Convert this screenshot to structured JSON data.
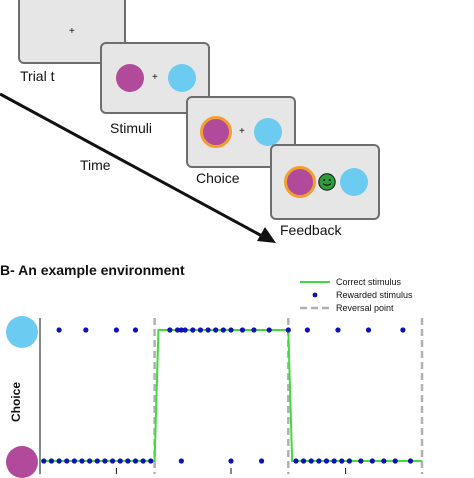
{
  "panel_a": {
    "fixation_symbol": "+",
    "labels": {
      "trial": "Trial t",
      "stimuli": "Stimuli",
      "choice": "Choice",
      "time": "Time",
      "feedback": "Feedback"
    },
    "feedback_icon": "smiley-face-icon"
  },
  "panel_b": {
    "title": "B- An example environment",
    "y_axis_label": "Choice",
    "legend": {
      "correct": "Correct stimulus",
      "rewarded": "Rewarded stimulus",
      "reversal": "Reversal point"
    }
  },
  "colors": {
    "magenta_stimulus": "#b14a9b",
    "cyan_stimulus": "#6ccbf0",
    "choice_ring": "#f0a030",
    "correct_line": "#3ddc3d",
    "rewarded_dot": "#1010b8",
    "reversal_line": "#b0b0b0",
    "feedback_face": "#2e9e3c"
  },
  "chart_data": {
    "type": "scatter",
    "title": "B- An example environment",
    "ylabel": "Choice",
    "y_categories": [
      "magenta",
      "cyan"
    ],
    "reversal_trials": [
      30,
      65
    ],
    "correct_stimulus": [
      {
        "from_trial": 0,
        "to_trial": 30,
        "stimulus": "magenta"
      },
      {
        "from_trial": 31,
        "to_trial": 65,
        "stimulus": "cyan"
      },
      {
        "from_trial": 66,
        "to_trial": 100,
        "stimulus": "magenta"
      }
    ],
    "rewarded_cyan_trials": [
      5,
      12,
      20,
      25,
      34,
      36,
      37,
      38,
      40,
      42,
      44,
      46,
      48,
      50,
      53,
      56,
      60,
      65,
      70,
      78,
      86,
      95
    ],
    "rewarded_magenta_trials": [
      1,
      3,
      5,
      7,
      9,
      11,
      13,
      15,
      17,
      19,
      21,
      23,
      25,
      27,
      29,
      37,
      50,
      58,
      67,
      69,
      71,
      73,
      75,
      77,
      79,
      81,
      84,
      87,
      90,
      93,
      97
    ]
  }
}
